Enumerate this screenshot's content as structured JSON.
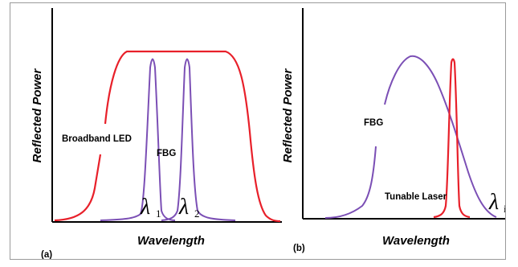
{
  "panel_a": {
    "label": "(a)",
    "y_axis_label": "Reflected Power",
    "x_axis_label": "Wavelength",
    "curve_labels": {
      "broadband": "Broadband LED",
      "fbg": "FBG"
    },
    "lambda_symbol": "λ",
    "lambda_1_sub": "1",
    "lambda_2_sub": "2"
  },
  "panel_b": {
    "label": "(b)",
    "y_axis_label": "Reflected Power",
    "x_axis_label": "Wavelength",
    "curve_labels": {
      "fbg": "FBG",
      "laser": "Tunable Laser"
    },
    "lambda_symbol": "λ",
    "lambda_sub": "i"
  },
  "colors": {
    "led_laser": "#e8202a",
    "fbg": "#7b4fb5",
    "axes": "#000000"
  }
}
